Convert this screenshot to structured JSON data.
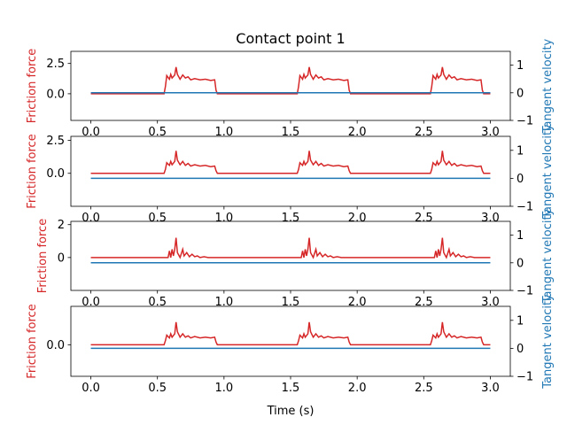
{
  "chart_data": {
    "type": "line",
    "title": "Contact point 1",
    "xlabel": "Time (s)",
    "left_ylabel": "Friction force",
    "right_ylabel": "Tangent velocity",
    "colors": {
      "friction": "#d62728",
      "velocity": "#1f77b4"
    },
    "xlim": [
      -0.15,
      3.15
    ],
    "xticks": [
      0.0,
      0.5,
      1.0,
      1.5,
      2.0,
      2.5,
      3.0
    ],
    "xtick_labels": [
      "0.0",
      "0.5",
      "1.0",
      "1.5",
      "2.0",
      "2.5",
      "3.0"
    ],
    "right_ylim": [
      -1,
      1.5
    ],
    "right_yticks": [
      -1,
      0,
      1
    ],
    "right_ytick_labels": [
      "−1",
      "0",
      "1"
    ],
    "grid": false,
    "subplots": [
      {
        "ylim": [
          -2.2,
          3.5
        ],
        "yticks": [
          0.0,
          2.5
        ],
        "ytick_labels": [
          "0.0",
          "2.5"
        ],
        "friction_base": 1.1,
        "friction_profile": [
          [
            0.0,
            0.0
          ],
          [
            0.55,
            0.0
          ],
          [
            0.56,
            0.6
          ],
          [
            0.57,
            1.5
          ],
          [
            0.59,
            1.2
          ],
          [
            0.6,
            1.6
          ],
          [
            0.61,
            1.3
          ],
          [
            0.63,
            1.55
          ],
          [
            0.64,
            2.2
          ],
          [
            0.65,
            1.6
          ],
          [
            0.67,
            1.2
          ],
          [
            0.69,
            1.55
          ],
          [
            0.71,
            1.3
          ],
          [
            0.73,
            1.4
          ],
          [
            0.75,
            1.15
          ],
          [
            0.78,
            1.25
          ],
          [
            0.82,
            1.15
          ],
          [
            0.86,
            1.2
          ],
          [
            0.9,
            1.1
          ],
          [
            0.93,
            1.15
          ],
          [
            0.94,
            0.3
          ],
          [
            0.95,
            0.0
          ],
          [
            1.0,
            0.0
          ]
        ],
        "velocity": [
          [
            0.0,
            0.0
          ],
          [
            3.0,
            0.0
          ]
        ]
      },
      {
        "ylim": [
          -2.5,
          2.8
        ],
        "yticks": [
          0.0,
          2.5
        ],
        "ytick_labels": [
          "0.0",
          "2.5"
        ],
        "friction_base": 0.5,
        "friction_profile": [
          [
            0.0,
            0.0
          ],
          [
            0.55,
            0.0
          ],
          [
            0.56,
            0.3
          ],
          [
            0.57,
            0.8
          ],
          [
            0.59,
            0.6
          ],
          [
            0.6,
            0.9
          ],
          [
            0.61,
            0.65
          ],
          [
            0.63,
            0.9
          ],
          [
            0.64,
            1.7
          ],
          [
            0.65,
            1.0
          ],
          [
            0.67,
            0.65
          ],
          [
            0.69,
            0.9
          ],
          [
            0.71,
            0.6
          ],
          [
            0.73,
            0.75
          ],
          [
            0.75,
            0.55
          ],
          [
            0.78,
            0.65
          ],
          [
            0.82,
            0.55
          ],
          [
            0.86,
            0.6
          ],
          [
            0.9,
            0.5
          ],
          [
            0.93,
            0.55
          ],
          [
            0.94,
            0.2
          ],
          [
            0.95,
            0.0
          ],
          [
            1.0,
            0.0
          ]
        ],
        "velocity": [
          [
            0.0,
            0.0
          ],
          [
            3.0,
            0.0
          ]
        ]
      },
      {
        "ylim": [
          -2.0,
          2.2
        ],
        "yticks": [
          0,
          2
        ],
        "ytick_labels": [
          "0",
          "2"
        ],
        "friction_base": 0.0,
        "friction_profile": [
          [
            0.0,
            0.0
          ],
          [
            0.58,
            0.0
          ],
          [
            0.59,
            0.4
          ],
          [
            0.6,
            0.0
          ],
          [
            0.61,
            0.5
          ],
          [
            0.62,
            0.1
          ],
          [
            0.63,
            0.5
          ],
          [
            0.64,
            1.2
          ],
          [
            0.65,
            0.3
          ],
          [
            0.67,
            0.0
          ],
          [
            0.69,
            0.5
          ],
          [
            0.7,
            0.1
          ],
          [
            0.72,
            0.3
          ],
          [
            0.74,
            0.05
          ],
          [
            0.76,
            0.2
          ],
          [
            0.78,
            0.05
          ],
          [
            0.8,
            0.1
          ],
          [
            0.82,
            0.0
          ],
          [
            0.85,
            0.05
          ],
          [
            0.88,
            0.0
          ],
          [
            1.0,
            0.0
          ]
        ],
        "velocity": [
          [
            0.0,
            0.0
          ],
          [
            3.0,
            0.0
          ]
        ]
      },
      {
        "ylim": [
          -2.3,
          2.8
        ],
        "yticks": [
          0.0
        ],
        "ytick_labels": [
          "0.0"
        ],
        "friction_base": 0.6,
        "friction_profile": [
          [
            0.0,
            0.0
          ],
          [
            0.55,
            0.0
          ],
          [
            0.56,
            0.3
          ],
          [
            0.57,
            0.7
          ],
          [
            0.59,
            0.5
          ],
          [
            0.6,
            0.8
          ],
          [
            0.61,
            0.55
          ],
          [
            0.63,
            0.8
          ],
          [
            0.64,
            1.65
          ],
          [
            0.65,
            0.95
          ],
          [
            0.67,
            0.55
          ],
          [
            0.69,
            0.8
          ],
          [
            0.71,
            0.55
          ],
          [
            0.73,
            0.65
          ],
          [
            0.75,
            0.5
          ],
          [
            0.78,
            0.6
          ],
          [
            0.82,
            0.5
          ],
          [
            0.86,
            0.55
          ],
          [
            0.9,
            0.5
          ],
          [
            0.93,
            0.55
          ],
          [
            0.94,
            0.2
          ],
          [
            0.95,
            0.0
          ],
          [
            1.0,
            0.0
          ]
        ],
        "velocity": [
          [
            0.0,
            0.0
          ],
          [
            3.0,
            0.0
          ]
        ]
      }
    ]
  }
}
